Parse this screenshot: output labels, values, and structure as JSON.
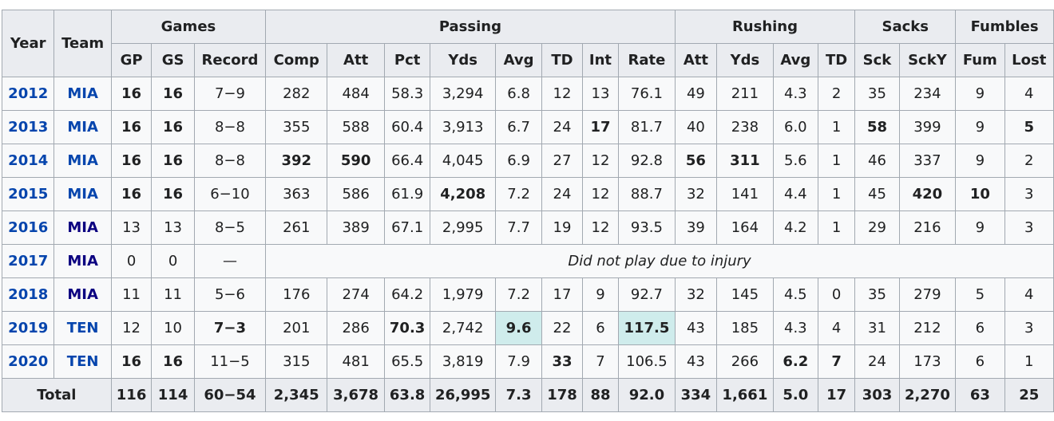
{
  "groups": {
    "year": "Year",
    "team": "Team",
    "games": "Games",
    "passing": "Passing",
    "rushing": "Rushing",
    "sacks": "Sacks",
    "fumbles": "Fumbles"
  },
  "columns": [
    "GP",
    "GS",
    "Record",
    "Comp",
    "Att",
    "Pct",
    "Yds",
    "Avg",
    "TD",
    "Int",
    "Rate",
    "Att",
    "Yds",
    "Avg",
    "TD",
    "Sck",
    "SckY",
    "Fum",
    "Lost"
  ],
  "rows": [
    {
      "year": "2012",
      "team": "MIA",
      "team_visited": false,
      "gp": "16",
      "gs": "16",
      "record": "7−9",
      "comp": "282",
      "att": "484",
      "pct": "58.3",
      "yds": "3,294",
      "avg": "6.8",
      "td": "12",
      "int": "13",
      "rate": "76.1",
      "ratt": "49",
      "ryds": "211",
      "ravg": "4.3",
      "rtd": "2",
      "sck": "35",
      "scky": "234",
      "fum": "9",
      "lost": "4"
    },
    {
      "year": "2013",
      "team": "MIA",
      "team_visited": false,
      "gp": "16",
      "gs": "16",
      "record": "8−8",
      "comp": "355",
      "att": "588",
      "pct": "60.4",
      "yds": "3,913",
      "avg": "6.7",
      "td": "24",
      "int": "17",
      "rate": "81.7",
      "ratt": "40",
      "ryds": "238",
      "ravg": "6.0",
      "rtd": "1",
      "sck": "58",
      "scky": "399",
      "fum": "9",
      "lost": "5"
    },
    {
      "year": "2014",
      "team": "MIA",
      "team_visited": false,
      "gp": "16",
      "gs": "16",
      "record": "8−8",
      "comp": "392",
      "att": "590",
      "pct": "66.4",
      "yds": "4,045",
      "avg": "6.9",
      "td": "27",
      "int": "12",
      "rate": "92.8",
      "ratt": "56",
      "ryds": "311",
      "ravg": "5.6",
      "rtd": "1",
      "sck": "46",
      "scky": "337",
      "fum": "9",
      "lost": "2"
    },
    {
      "year": "2015",
      "team": "MIA",
      "team_visited": false,
      "gp": "16",
      "gs": "16",
      "record": "6−10",
      "comp": "363",
      "att": "586",
      "pct": "61.9",
      "yds": "4,208",
      "avg": "7.2",
      "td": "24",
      "int": "12",
      "rate": "88.7",
      "ratt": "32",
      "ryds": "141",
      "ravg": "4.4",
      "rtd": "1",
      "sck": "45",
      "scky": "420",
      "fum": "10",
      "lost": "3"
    },
    {
      "year": "2016",
      "team": "MIA",
      "team_visited": true,
      "gp": "13",
      "gs": "13",
      "record": "8−5",
      "comp": "261",
      "att": "389",
      "pct": "67.1",
      "yds": "2,995",
      "avg": "7.7",
      "td": "19",
      "int": "12",
      "rate": "93.5",
      "ratt": "39",
      "ryds": "164",
      "ravg": "4.2",
      "rtd": "1",
      "sck": "29",
      "scky": "216",
      "fum": "9",
      "lost": "3"
    },
    {
      "year": "2017",
      "team": "MIA",
      "team_visited": true,
      "gp": "0",
      "gs": "0",
      "record": "—",
      "note": "Did not play due to injury"
    },
    {
      "year": "2018",
      "team": "MIA",
      "team_visited": true,
      "gp": "11",
      "gs": "11",
      "record": "5−6",
      "comp": "176",
      "att": "274",
      "pct": "64.2",
      "yds": "1,979",
      "avg": "7.2",
      "td": "17",
      "int": "9",
      "rate": "92.7",
      "ratt": "32",
      "ryds": "145",
      "ravg": "4.5",
      "rtd": "0",
      "sck": "35",
      "scky": "279",
      "fum": "5",
      "lost": "4"
    },
    {
      "year": "2019",
      "team": "TEN",
      "team_visited": false,
      "gp": "12",
      "gs": "10",
      "record": "7−3",
      "comp": "201",
      "att": "286",
      "pct": "70.3",
      "yds": "2,742",
      "avg": "9.6",
      "td": "22",
      "int": "6",
      "rate": "117.5",
      "ratt": "43",
      "ryds": "185",
      "ravg": "4.3",
      "rtd": "4",
      "sck": "31",
      "scky": "212",
      "fum": "6",
      "lost": "3"
    },
    {
      "year": "2020",
      "team": "TEN",
      "team_visited": false,
      "gp": "16",
      "gs": "16",
      "record": "11−5",
      "comp": "315",
      "att": "481",
      "pct": "65.5",
      "yds": "3,819",
      "avg": "7.9",
      "td": "33",
      "int": "7",
      "rate": "106.5",
      "ratt": "43",
      "ryds": "266",
      "ravg": "6.2",
      "rtd": "7",
      "sck": "24",
      "scky": "173",
      "fum": "6",
      "lost": "1"
    }
  ],
  "total": {
    "label": "Total",
    "gp": "116",
    "gs": "114",
    "record": "60−54",
    "comp": "2,345",
    "att": "3,678",
    "pct": "63.8",
    "yds": "26,995",
    "avg": "7.3",
    "td": "178",
    "int": "88",
    "rate": "92.0",
    "ratt": "334",
    "ryds": "1,661",
    "ravg": "5.0",
    "rtd": "17",
    "sck": "303",
    "scky": "2,270",
    "fum": "63",
    "lost": "25"
  },
  "bold_cells": {
    "2012": [
      "gp",
      "gs"
    ],
    "2013": [
      "gp",
      "gs",
      "int",
      "sck",
      "lost"
    ],
    "2014": [
      "gp",
      "gs",
      "comp",
      "att",
      "ratt",
      "ryds"
    ],
    "2015": [
      "gp",
      "gs",
      "yds",
      "scky",
      "fum"
    ],
    "2019": [
      "record",
      "pct",
      "avg",
      "rate"
    ],
    "2020": [
      "gp",
      "gs",
      "td",
      "ravg",
      "rtd"
    ]
  },
  "highlight_cells": {
    "2019": [
      "avg",
      "rate"
    ]
  },
  "colors": {
    "link": "#0645ad",
    "link_visited": "#0b0080",
    "header_bg": "#eaecf0",
    "cell_bg": "#f8f9fa",
    "border": "#a2a9b1",
    "highlight": "#cfecec"
  }
}
